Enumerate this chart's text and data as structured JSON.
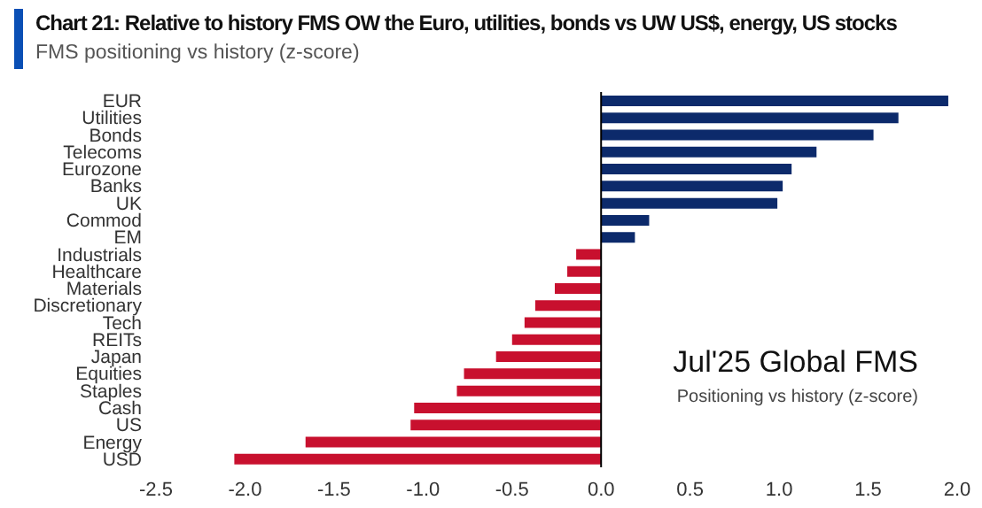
{
  "chart_data": {
    "type": "bar",
    "orientation": "horizontal",
    "title": "Chart 21: Relative to history FMS OW the Euro, utilities, bonds vs UW US$, energy, US stocks",
    "subtitle": "FMS positioning vs history (z-score)",
    "annotations": [
      "Jul'25 Global FMS",
      "Positioning vs history (z-score)"
    ],
    "categories": [
      "EUR",
      "Utilities",
      "Bonds",
      "Telecoms",
      "Eurozone",
      "Banks",
      "UK",
      "Commod",
      "EM",
      "Industrials",
      "Healthcare",
      "Materials",
      "Discretionary",
      "Tech",
      "REITs",
      "Japan",
      "Equities",
      "Staples",
      "Cash",
      "US",
      "Energy",
      "USD"
    ],
    "values": [
      1.95,
      1.67,
      1.53,
      1.21,
      1.07,
      1.02,
      0.99,
      0.27,
      0.19,
      -0.14,
      -0.19,
      -0.26,
      -0.37,
      -0.43,
      -0.5,
      -0.59,
      -0.77,
      -0.81,
      -1.05,
      -1.07,
      -1.66,
      -2.06
    ],
    "colors": [
      "#0c2a6b",
      "#0c2a6b",
      "#0c2a6b",
      "#0c2a6b",
      "#0c2a6b",
      "#0c2a6b",
      "#0c2a6b",
      "#0c2a6b",
      "#0c2a6b",
      "#c8102e",
      "#c8102e",
      "#c8102e",
      "#c8102e",
      "#c8102e",
      "#c8102e",
      "#c8102e",
      "#c8102e",
      "#c8102e",
      "#c8102e",
      "#c8102e",
      "#c8102e",
      "#c8102e"
    ],
    "xlim": [
      -2.5,
      2.0
    ],
    "xticks": [
      {
        "value": -2.5,
        "label": "-2.5"
      },
      {
        "value": -2,
        "label": "-2.0"
      },
      {
        "value": -1.5,
        "label": "-1.5"
      },
      {
        "value": -1,
        "label": "-1.0"
      },
      {
        "value": -0.5,
        "label": "-0.5"
      },
      {
        "value": 0,
        "label": "0.0"
      },
      {
        "value": 0.5,
        "label": "0.5"
      },
      {
        "value": 1,
        "label": "1.0"
      },
      {
        "value": 1.5,
        "label": "1.5"
      },
      {
        "value": 2,
        "label": "2.0"
      }
    ],
    "ref_lines": [
      {
        "axis": "x",
        "value": 0,
        "color": "#000000"
      }
    ]
  }
}
